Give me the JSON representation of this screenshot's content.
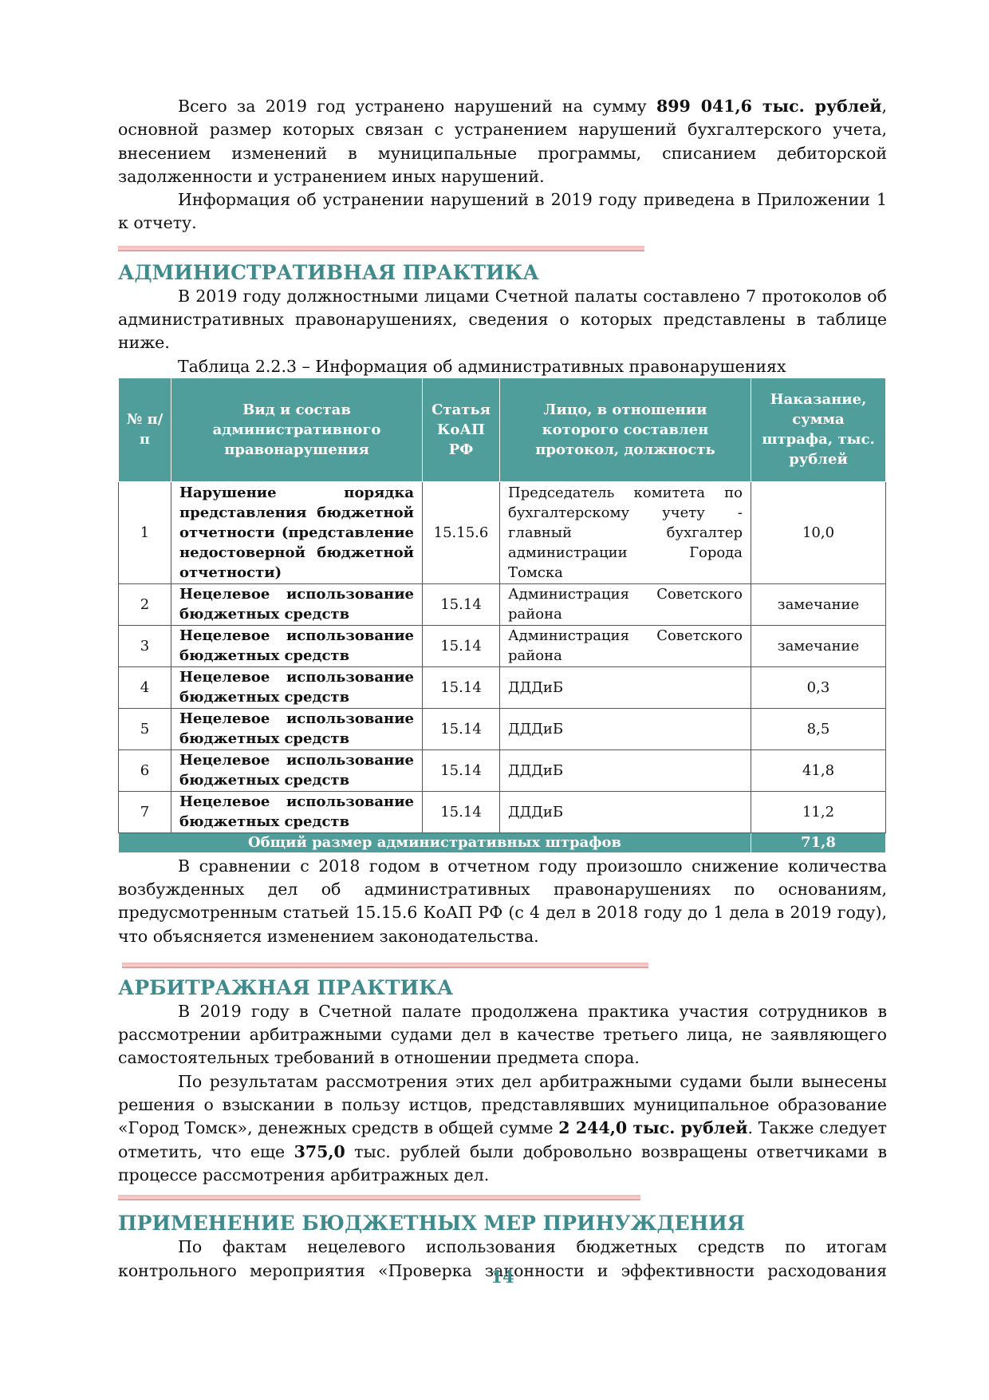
{
  "intro": {
    "p1_a": "Всего за 2019 год устранено нарушений на сумму ",
    "p1_bold": "899 041,6 тыс. рублей",
    "p1_b": ", основной размер которых связан с устранением нарушений бухгалтерского учета, внесением изменений в муниципальные программы, списанием дебиторской задолженности и устранением иных нарушений.",
    "p2": "Информация об устранении нарушений в 2019 году приведена в Приложении 1 к отчету."
  },
  "admin": {
    "heading": "АДМИНИСТРАТИВНАЯ ПРАКТИКА",
    "p1": "В 2019 году должностными лицами Счетной палаты составлено 7 протоколов об административных правонарушениях, сведения о которых представлены в таблице ниже.",
    "caption": "Таблица 2.2.3 – Информация об административных правонарушениях",
    "table": {
      "headers": [
        "№ п/п",
        "Вид и состав административного правонарушения",
        "Статья КоАП РФ",
        "Лицо, в отношении которого составлен протокол, должность",
        "Наказание, сумма штрафа, тыс. рублей"
      ],
      "rows": [
        {
          "num": "1",
          "violation": "Нарушение порядка представления бюджетной отчетности (представление недостоверной бюджетной отчетности)",
          "article": "15.15.6",
          "person": "Председатель комитета по бухгалтерскому учету - главный бухгалтер администрации Города Томска",
          "penalty": "10,0"
        },
        {
          "num": "2",
          "violation": "Нецелевое использование бюджетных средств",
          "article": "15.14",
          "person": "Администрация Советского района",
          "penalty": "замечание"
        },
        {
          "num": "3",
          "violation": "Нецелевое использование бюджетных средств",
          "article": "15.14",
          "person": "Администрация Советского района",
          "penalty": "замечание"
        },
        {
          "num": "4",
          "violation": "Нецелевое использование бюджетных средств",
          "article": "15.14",
          "person": "ДДДиБ",
          "penalty": "0,3"
        },
        {
          "num": "5",
          "violation": "Нецелевое использование бюджетных средств",
          "article": "15.14",
          "person": "ДДДиБ",
          "penalty": "8,5"
        },
        {
          "num": "6",
          "violation": "Нецелевое использование бюджетных средств",
          "article": "15.14",
          "person": "ДДДиБ",
          "penalty": "41,8"
        },
        {
          "num": "7",
          "violation": "Нецелевое использование бюджетных средств",
          "article": "15.14",
          "person": "ДДДиБ",
          "penalty": "11,2"
        }
      ],
      "total_label": "Общий размер административных штрафов",
      "total_value": "71,8"
    },
    "p2": "В сравнении с 2018 годом в отчетном году произошло снижение количества возбужденных дел об административных правонарушениях по основаниям, предусмотренным статьей 15.15.6 КоАП РФ (с 4 дел в 2018 году до 1 дела в 2019 году), что объясняется изменением законодательства."
  },
  "arb": {
    "heading": "АРБИТРАЖНАЯ ПРАКТИКА",
    "p1": "В 2019 году в Счетной палате продолжена практика участия сотрудников в рассмотрении арбитражными судами дел в качестве третьего лица, не заявляющего самостоятельных требований в отношении предмета спора.",
    "p2_a": "По результатам рассмотрения этих дел арбитражными судами были вынесены решения о взыскании в пользу истцов, представлявших муниципальное образование «Город Томск», денежных средств в общей сумме ",
    "p2_bold1": "2 244,0 тыс. рублей",
    "p2_b": ". Также следует отметить, что еще ",
    "p2_bold2": "375,0",
    "p2_c": " тыс. рублей были добровольно возвращены ответчиками в процессе рассмотрения арбитражных дел."
  },
  "budget": {
    "heading": "ПРИМЕНЕНИЕ БЮДЖЕТНЫХ МЕР ПРИНУЖДЕНИЯ",
    "p1": "По фактам нецелевого использования бюджетных средств по итогам контрольного мероприятия «Проверка законности и эффективности расходования"
  },
  "page_number": "14"
}
